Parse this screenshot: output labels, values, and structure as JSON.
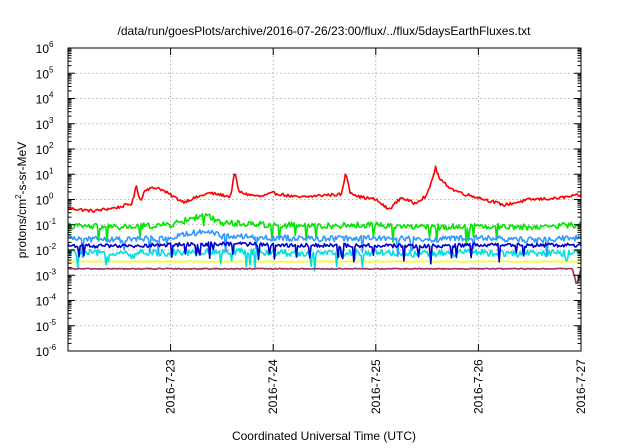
{
  "chart_data": {
    "type": "line",
    "title": "/data/run/goesPlots/archive/2016-07-26/23:00/flux/../flux/5daysEarthFluxes.txt",
    "xlabel": "Coordinated Universal Time (UTC)",
    "ylabel": {
      "base": "protons/cm",
      "sup": "2",
      "rest": "-s-sr-MeV"
    },
    "y_scale": "log",
    "ylim": [
      1e-06,
      1000000.0
    ],
    "xlim": [
      "2016-07-22 00:00",
      "2016-07-27 00:00"
    ],
    "x_ticks": [
      "2016-7-23",
      "2016-7-24",
      "2016-7-25",
      "2016-7-26",
      "2016-7-27"
    ],
    "y_ticks": [
      {
        "base": "10",
        "exp": "-6",
        "value": 1e-06
      },
      {
        "base": "10",
        "exp": "-5",
        "value": 1e-05
      },
      {
        "base": "10",
        "exp": "-4",
        "value": 0.0001
      },
      {
        "base": "10",
        "exp": "-3",
        "value": 0.001
      },
      {
        "base": "10",
        "exp": "-2",
        "value": 0.01
      },
      {
        "base": "10",
        "exp": "-1",
        "value": 0.1
      },
      {
        "base": "10",
        "exp": "0",
        "value": 1
      },
      {
        "base": "10",
        "exp": "1",
        "value": 10
      },
      {
        "base": "10",
        "exp": "2",
        "value": 100
      },
      {
        "base": "10",
        "exp": "3",
        "value": 1000
      },
      {
        "base": "10",
        "exp": "4",
        "value": 10000
      },
      {
        "base": "10",
        "exp": "5",
        "value": 100000
      },
      {
        "base": "10",
        "exp": "6",
        "value": 1000000
      }
    ],
    "grid": true,
    "legend": "none",
    "series": [
      {
        "color": "#ff0000",
        "x": [
          "2016-07-22 00:00",
          "2016-07-22 06:00",
          "2016-07-22 12:00",
          "2016-07-22 15:00",
          "2016-07-22 16:00",
          "2016-07-22 17:00",
          "2016-07-22 18:00",
          "2016-07-22 21:00",
          "2016-07-23 00:00",
          "2016-07-23 03:00",
          "2016-07-23 06:00",
          "2016-07-23 09:00",
          "2016-07-23 12:00",
          "2016-07-23 14:00",
          "2016-07-23 15:00",
          "2016-07-23 16:00",
          "2016-07-23 18:00",
          "2016-07-23 21:00",
          "2016-07-24 00:00",
          "2016-07-24 06:00",
          "2016-07-24 12:00",
          "2016-07-24 16:00",
          "2016-07-24 17:00",
          "2016-07-24 18:00",
          "2016-07-24 20:00",
          "2016-07-25 00:00",
          "2016-07-25 03:00",
          "2016-07-25 06:00",
          "2016-07-25 09:00",
          "2016-07-25 12:00",
          "2016-07-25 13:00",
          "2016-07-25 14:00",
          "2016-07-25 15:00",
          "2016-07-25 18:00",
          "2016-07-25 21:00",
          "2016-07-26 00:00",
          "2016-07-26 06:00",
          "2016-07-26 12:00",
          "2016-07-26 18:00",
          "2016-07-27 00:00"
        ],
        "y": [
          0.45,
          0.35,
          0.5,
          0.7,
          3.5,
          0.8,
          2.5,
          3,
          1.5,
          0.8,
          1.2,
          1.8,
          1.5,
          1.3,
          12,
          2,
          1.6,
          1.3,
          1.8,
          1.2,
          1.5,
          1.6,
          12,
          2,
          1.3,
          1,
          0.4,
          1.2,
          0.7,
          1.5,
          5,
          18,
          6,
          2.5,
          1.6,
          1.2,
          0.6,
          1,
          1.1,
          1.5
        ]
      },
      {
        "color": "#00e600",
        "x": [
          "2016-07-22 00:00",
          "2016-07-22 12:00",
          "2016-07-23 00:00",
          "2016-07-23 08:00",
          "2016-07-23 12:00",
          "2016-07-24 00:00",
          "2016-07-24 12:00",
          "2016-07-25 00:00",
          "2016-07-25 12:00",
          "2016-07-26 00:00",
          "2016-07-26 12:00",
          "2016-07-27 00:00"
        ],
        "y": [
          0.09,
          0.08,
          0.1,
          0.25,
          0.12,
          0.1,
          0.09,
          0.1,
          0.08,
          0.09,
          0.08,
          0.1
        ]
      },
      {
        "color": "#00e0e0",
        "x": [
          "2016-07-22 00:00",
          "2016-07-22 12:00",
          "2016-07-23 00:00",
          "2016-07-23 12:00",
          "2016-07-24 00:00",
          "2016-07-24 12:00",
          "2016-07-25 00:00",
          "2016-07-25 12:00",
          "2016-07-26 00:00",
          "2016-07-26 12:00",
          "2016-07-27 00:00"
        ],
        "y": [
          0.008,
          0.007,
          0.008,
          0.009,
          0.008,
          0.007,
          0.008,
          0.007,
          0.008,
          0.007,
          0.008
        ]
      },
      {
        "color": "#3399ff",
        "x": [
          "2016-07-22 00:00",
          "2016-07-22 12:00",
          "2016-07-23 00:00",
          "2016-07-23 08:00",
          "2016-07-23 12:00",
          "2016-07-24 00:00",
          "2016-07-24 12:00",
          "2016-07-25 00:00",
          "2016-07-25 12:00",
          "2016-07-26 00:00",
          "2016-07-26 12:00",
          "2016-07-27 00:00"
        ],
        "y": [
          0.03,
          0.025,
          0.03,
          0.06,
          0.035,
          0.03,
          0.028,
          0.03,
          0.026,
          0.03,
          0.025,
          0.03
        ]
      },
      {
        "color": "#0000cc",
        "x": [
          "2016-07-22 00:00",
          "2016-07-22 12:00",
          "2016-07-23 00:00",
          "2016-07-23 12:00",
          "2016-07-24 00:00",
          "2016-07-24 12:00",
          "2016-07-25 00:00",
          "2016-07-25 12:00",
          "2016-07-26 00:00",
          "2016-07-26 12:00",
          "2016-07-27 00:00"
        ],
        "y": [
          0.015,
          0.014,
          0.016,
          0.018,
          0.016,
          0.015,
          0.015,
          0.014,
          0.016,
          0.015,
          0.016
        ]
      },
      {
        "color": "#ffff00",
        "x": [
          "2016-07-22 00:00",
          "2016-07-23 00:00",
          "2016-07-24 00:00",
          "2016-07-25 00:00",
          "2016-07-26 00:00",
          "2016-07-27 00:00"
        ],
        "y": [
          0.0035,
          0.0035,
          0.0035,
          0.0035,
          0.0035,
          0.0035
        ]
      },
      {
        "color": "#993366",
        "x": [
          "2016-07-22 00:00",
          "2016-07-23 00:00",
          "2016-07-24 00:00",
          "2016-07-25 00:00",
          "2016-07-26 00:00",
          "2016-07-26 22:00",
          "2016-07-26 23:00",
          "2016-07-27 00:00"
        ],
        "y": [
          0.0018,
          0.0018,
          0.0018,
          0.0018,
          0.0018,
          0.0018,
          0.0004,
          0.0018
        ]
      }
    ]
  }
}
